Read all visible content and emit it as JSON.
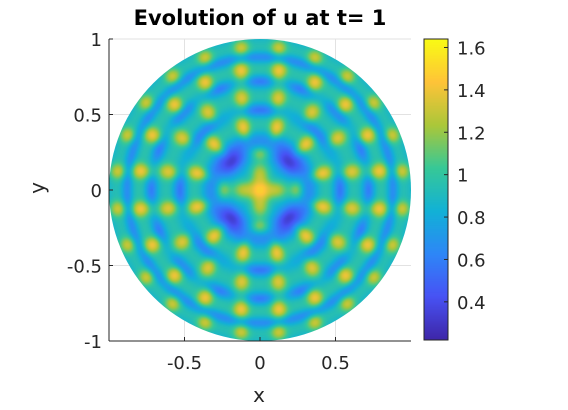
{
  "chart_data": {
    "type": "heatmap",
    "title": "Evolution of u at t= 1",
    "xlabel": "x",
    "ylabel": "y",
    "xlim": [
      -1,
      1
    ],
    "ylim": [
      -1,
      1
    ],
    "domain_shape": "unit disk",
    "colormap": "parula",
    "grid": true,
    "x_ticks": [
      -0.5,
      0,
      0.5
    ],
    "x_tick_labels": [
      "-0.5",
      "0",
      "0.5"
    ],
    "y_ticks": [
      1,
      0.5,
      0,
      -0.5,
      -1
    ],
    "y_tick_labels": [
      "1",
      "0.5",
      "0",
      "-0.5",
      "-1"
    ],
    "colorbar": {
      "location": "right",
      "range": [
        0.22,
        1.64
      ],
      "ticks": [
        1.6,
        1.4,
        1.2,
        1,
        0.8,
        0.6,
        0.4
      ],
      "tick_labels": [
        "1.6",
        "1.4",
        "1.2",
        "1",
        "0.8",
        "0.6",
        "0.4"
      ]
    },
    "value_range": [
      0.22,
      1.64
    ],
    "center_value": 1.6,
    "ring_peak_values": [
      1.4,
      1.35,
      1.4,
      1.3
    ]
  }
}
